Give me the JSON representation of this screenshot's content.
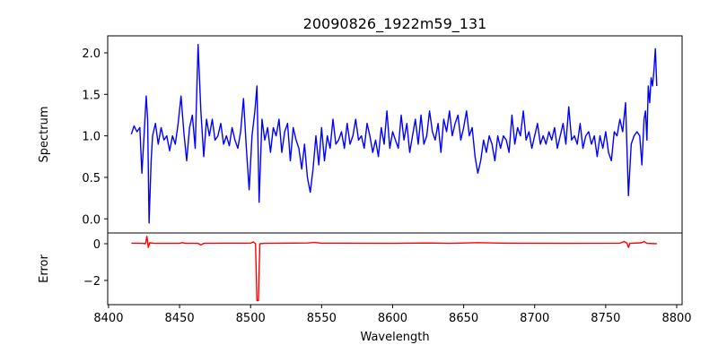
{
  "chart_data": [
    {
      "type": "line",
      "title": "20090826_1922m59_131",
      "xlabel": "",
      "ylabel": "Spectrum",
      "xlim": [
        8399.4,
        8803.8
      ],
      "ylim": [
        -0.17,
        2.205
      ],
      "xticks": [
        8400,
        8450,
        8500,
        8550,
        8600,
        8650,
        8700,
        8750,
        8800
      ],
      "yticks": [
        0.0,
        0.5,
        1.0,
        1.5,
        2.0
      ],
      "ytick_labels": [
        "0.0",
        "0.5",
        "1.0",
        "1.5",
        "2.0"
      ],
      "grid": false,
      "series": [
        {
          "name": "Spectrum",
          "color": "#0000ff",
          "points": [
            [
              8416,
              1.02
            ],
            [
              8418,
              1.12
            ],
            [
              8420,
              1.05
            ],
            [
              8422,
              1.1
            ],
            [
              8423.5,
              0.55
            ],
            [
              8425,
              1.0
            ],
            [
              8426.5,
              1.48
            ],
            [
              8427.5,
              1.2
            ],
            [
              8428.5,
              -0.05
            ],
            [
              8430,
              0.7
            ],
            [
              8431,
              1.0
            ],
            [
              8433,
              1.15
            ],
            [
              8435,
              0.9
            ],
            [
              8437,
              1.1
            ],
            [
              8439,
              0.95
            ],
            [
              8441,
              1.0
            ],
            [
              8443,
              0.82
            ],
            [
              8445,
              1.0
            ],
            [
              8447,
              0.9
            ],
            [
              8449,
              1.15
            ],
            [
              8451,
              1.48
            ],
            [
              8453,
              1.05
            ],
            [
              8455,
              0.7
            ],
            [
              8457,
              1.1
            ],
            [
              8459,
              1.25
            ],
            [
              8461,
              0.85
            ],
            [
              8463,
              2.1
            ],
            [
              8465,
              1.3
            ],
            [
              8467,
              0.75
            ],
            [
              8469,
              1.2
            ],
            [
              8471,
              1.0
            ],
            [
              8473,
              1.2
            ],
            [
              8475,
              0.95
            ],
            [
              8477,
              1.0
            ],
            [
              8479,
              1.15
            ],
            [
              8481,
              0.9
            ],
            [
              8483,
              1.0
            ],
            [
              8485,
              0.88
            ],
            [
              8487,
              1.1
            ],
            [
              8489,
              0.95
            ],
            [
              8491,
              0.85
            ],
            [
              8493,
              1.05
            ],
            [
              8495,
              1.45
            ],
            [
              8497,
              0.85
            ],
            [
              8499,
              0.35
            ],
            [
              8501,
              1.0
            ],
            [
              8503,
              1.3
            ],
            [
              8504.5,
              1.6
            ],
            [
              8506,
              0.2
            ],
            [
              8508,
              1.2
            ],
            [
              8510,
              0.95
            ],
            [
              8512,
              1.1
            ],
            [
              8514,
              0.8
            ],
            [
              8516,
              1.1
            ],
            [
              8518,
              1.0
            ],
            [
              8520,
              1.2
            ],
            [
              8522,
              0.8
            ],
            [
              8524,
              1.05
            ],
            [
              8526,
              1.15
            ],
            [
              8528,
              0.7
            ],
            [
              8530,
              1.1
            ],
            [
              8532,
              0.95
            ],
            [
              8534,
              0.85
            ],
            [
              8536,
              0.6
            ],
            [
              8538,
              0.9
            ],
            [
              8540,
              0.5
            ],
            [
              8542,
              0.32
            ],
            [
              8544,
              0.6
            ],
            [
              8546,
              1.0
            ],
            [
              8548,
              0.65
            ],
            [
              8550,
              1.1
            ],
            [
              8552,
              0.7
            ],
            [
              8554,
              1.0
            ],
            [
              8556,
              0.85
            ],
            [
              8558,
              1.2
            ],
            [
              8560,
              0.9
            ],
            [
              8562,
              0.95
            ],
            [
              8564,
              1.05
            ],
            [
              8566,
              0.85
            ],
            [
              8568,
              1.15
            ],
            [
              8570,
              0.9
            ],
            [
              8572,
              1.0
            ],
            [
              8574,
              1.2
            ],
            [
              8576,
              0.95
            ],
            [
              8578,
              1.0
            ],
            [
              8580,
              0.85
            ],
            [
              8582,
              1.15
            ],
            [
              8584,
              1.0
            ],
            [
              8586,
              0.8
            ],
            [
              8588,
              0.95
            ],
            [
              8590,
              0.75
            ],
            [
              8592,
              1.1
            ],
            [
              8594,
              0.9
            ],
            [
              8596,
              1.3
            ],
            [
              8598,
              0.85
            ],
            [
              8600,
              1.05
            ],
            [
              8602,
              0.95
            ],
            [
              8604,
              0.85
            ],
            [
              8606,
              1.25
            ],
            [
              8608,
              0.95
            ],
            [
              8610,
              1.15
            ],
            [
              8612,
              0.8
            ],
            [
              8614,
              1.0
            ],
            [
              8616,
              1.2
            ],
            [
              8618,
              0.9
            ],
            [
              8620,
              1.25
            ],
            [
              8622,
              0.9
            ],
            [
              8624,
              1.0
            ],
            [
              8626,
              1.3
            ],
            [
              8628,
              1.05
            ],
            [
              8630,
              0.95
            ],
            [
              8632,
              1.15
            ],
            [
              8634,
              0.8
            ],
            [
              8636,
              1.2
            ],
            [
              8638,
              1.05
            ],
            [
              8640,
              1.3
            ],
            [
              8642,
              1.0
            ],
            [
              8644,
              1.15
            ],
            [
              8646,
              1.25
            ],
            [
              8648,
              0.95
            ],
            [
              8650,
              1.1
            ],
            [
              8652,
              1.3
            ],
            [
              8654,
              1.0
            ],
            [
              8656,
              1.1
            ],
            [
              8658,
              0.75
            ],
            [
              8660,
              0.55
            ],
            [
              8662,
              0.7
            ],
            [
              8664,
              0.95
            ],
            [
              8666,
              0.8
            ],
            [
              8668,
              1.0
            ],
            [
              8670,
              0.9
            ],
            [
              8672,
              0.7
            ],
            [
              8674,
              1.0
            ],
            [
              8676,
              0.85
            ],
            [
              8678,
              1.0
            ],
            [
              8680,
              0.95
            ],
            [
              8682,
              0.8
            ],
            [
              8684,
              1.25
            ],
            [
              8686,
              0.9
            ],
            [
              8688,
              1.1
            ],
            [
              8690,
              1.0
            ],
            [
              8692,
              1.3
            ],
            [
              8694,
              0.95
            ],
            [
              8696,
              1.05
            ],
            [
              8698,
              0.85
            ],
            [
              8700,
              1.0
            ],
            [
              8702,
              1.15
            ],
            [
              8704,
              0.9
            ],
            [
              8706,
              1.0
            ],
            [
              8708,
              0.9
            ],
            [
              8710,
              1.05
            ],
            [
              8712,
              0.95
            ],
            [
              8714,
              1.1
            ],
            [
              8716,
              0.85
            ],
            [
              8718,
              1.0
            ],
            [
              8720,
              1.15
            ],
            [
              8722,
              0.9
            ],
            [
              8724,
              1.35
            ],
            [
              8726,
              0.95
            ],
            [
              8728,
              1.0
            ],
            [
              8730,
              0.9
            ],
            [
              8732,
              1.15
            ],
            [
              8734,
              0.85
            ],
            [
              8736,
              1.0
            ],
            [
              8738,
              1.05
            ],
            [
              8740,
              0.9
            ],
            [
              8742,
              1.0
            ],
            [
              8744,
              0.75
            ],
            [
              8746,
              1.0
            ],
            [
              8748,
              0.85
            ],
            [
              8750,
              1.05
            ],
            [
              8752,
              0.8
            ],
            [
              8754,
              0.7
            ],
            [
              8756,
              1.05
            ],
            [
              8758,
              1.0
            ],
            [
              8760,
              1.2
            ],
            [
              8762,
              1.05
            ],
            [
              8764,
              1.4
            ],
            [
              8766,
              0.28
            ],
            [
              8768,
              0.9
            ],
            [
              8770,
              1.0
            ],
            [
              8772,
              1.05
            ],
            [
              8774,
              1.0
            ],
            [
              8775.5,
              0.65
            ],
            [
              8777,
              1.2
            ],
            [
              8778,
              1.3
            ],
            [
              8779,
              0.95
            ],
            [
              8780,
              1.6
            ],
            [
              8781,
              1.4
            ],
            [
              8782,
              1.7
            ],
            [
              8783,
              1.6
            ],
            [
              8784,
              1.8
            ],
            [
              8785,
              2.05
            ],
            [
              8786,
              1.6
            ]
          ]
        }
      ]
    },
    {
      "type": "line",
      "xlabel": "Wavelength",
      "ylabel": "Error",
      "xlim": [
        8399.4,
        8803.8
      ],
      "ylim": [
        -3.32,
        0.585
      ],
      "xticks": [
        8400,
        8450,
        8500,
        8550,
        8600,
        8650,
        8700,
        8750,
        8800
      ],
      "xtick_labels": [
        "8400",
        "8450",
        "8500",
        "8550",
        "8600",
        "8650",
        "8700",
        "8750",
        "8800"
      ],
      "yticks": [
        0,
        -2
      ],
      "ytick_labels": [
        "0",
        "−2"
      ],
      "grid": false,
      "series": [
        {
          "name": "Error",
          "color": "#ff0000",
          "points": [
            [
              8416,
              0.03
            ],
            [
              8424,
              0.02
            ],
            [
              8426,
              0.0
            ],
            [
              8427,
              0.4
            ],
            [
              8428,
              -0.2
            ],
            [
              8429,
              0.05
            ],
            [
              8432,
              0.02
            ],
            [
              8450,
              0.02
            ],
            [
              8452,
              0.06
            ],
            [
              8454,
              0.02
            ],
            [
              8463,
              0.02
            ],
            [
              8465,
              -0.07
            ],
            [
              8467,
              0.02
            ],
            [
              8480,
              0.03
            ],
            [
              8500,
              0.03
            ],
            [
              8502,
              0.1
            ],
            [
              8503.5,
              0.0
            ],
            [
              8504.5,
              -3.1
            ],
            [
              8505.5,
              -3.1
            ],
            [
              8506.5,
              0.0
            ],
            [
              8510,
              0.02
            ],
            [
              8540,
              0.04
            ],
            [
              8545,
              0.07
            ],
            [
              8550,
              0.03
            ],
            [
              8600,
              0.02
            ],
            [
              8625,
              0.04
            ],
            [
              8640,
              0.02
            ],
            [
              8660,
              0.06
            ],
            [
              8680,
              0.03
            ],
            [
              8720,
              0.02
            ],
            [
              8760,
              0.03
            ],
            [
              8763,
              0.12
            ],
            [
              8765,
              0.03
            ],
            [
              8766,
              -0.2
            ],
            [
              8767,
              0.02
            ],
            [
              8775,
              0.05
            ],
            [
              8777,
              0.12
            ],
            [
              8779,
              0.02
            ],
            [
              8786,
              0.0
            ]
          ]
        }
      ]
    }
  ]
}
